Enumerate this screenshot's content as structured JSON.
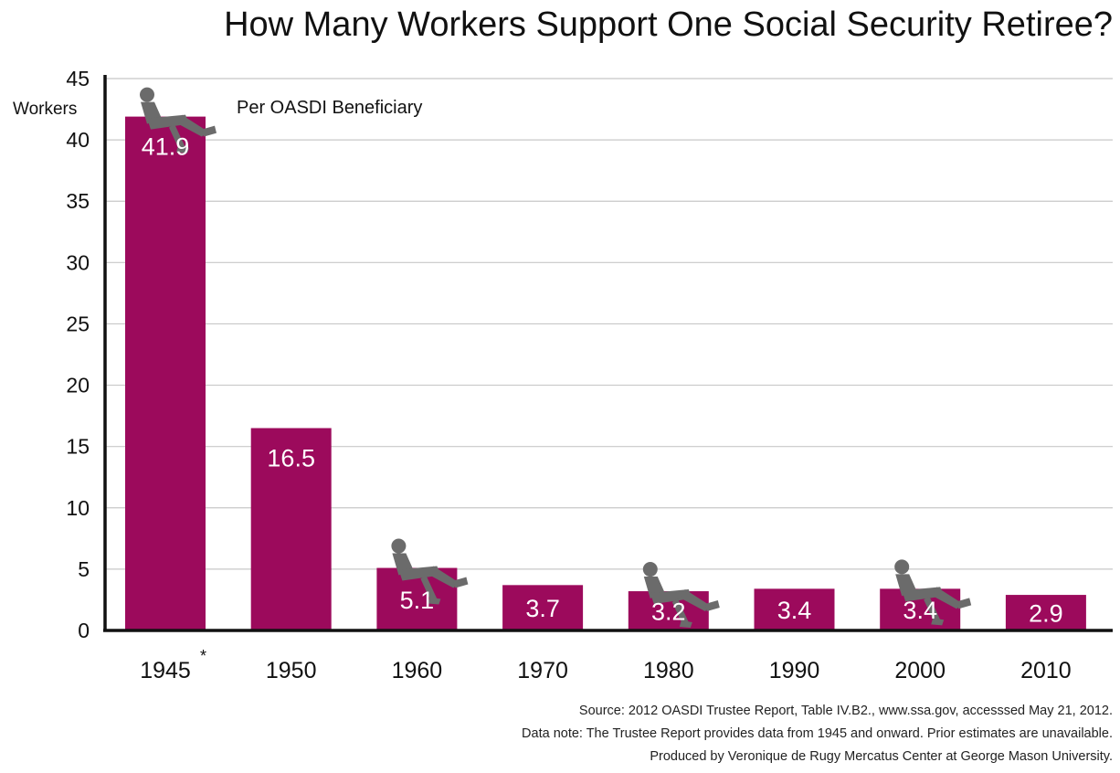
{
  "title": "How Many Workers Support One Social Security Retiree?",
  "ylabel_unit": "Workers",
  "ylabel_series": "Per OASDI Beneficiary",
  "source_lines": [
    "Source: 2012 OASDI Trustee Report, Table IV.B2., www.ssa.gov, accesssed May 21, 2012.",
    "Data note: The Trustee Report provides data from 1945 and onward. Prior estimates are unavailable.",
    "Produced by Veronique de Rugy Mercatus Center at George Mason University."
  ],
  "colors": {
    "bar": "#9c0a5c",
    "figure": "#6b6b6b",
    "grid": "#c8c8c8",
    "axis": "#111111"
  },
  "chart_data": {
    "type": "bar",
    "title": "How Many Workers Support One Social Security Retiree?",
    "xlabel": "",
    "ylabel": "Workers Per OASDI Beneficiary",
    "categories": [
      "1945",
      "1950",
      "1960",
      "1970",
      "1980",
      "1990",
      "2000",
      "2010"
    ],
    "category_marks": [
      "*",
      "",
      "",
      "",
      "",
      "",
      "",
      ""
    ],
    "values": [
      41.9,
      16.5,
      5.1,
      3.7,
      3.2,
      3.4,
      3.4,
      2.9
    ],
    "value_labels": [
      "41.9",
      "16.5",
      "5.1",
      "3.7",
      "3.2",
      "3.4",
      "3.4",
      "2.9"
    ],
    "ylim": [
      0,
      45
    ],
    "yticks": [
      0,
      5,
      10,
      15,
      20,
      25,
      30,
      35,
      40,
      45
    ],
    "grid": true,
    "legend": "none",
    "decorations": [
      "seated-figure on 1945",
      "seated-figure on 1960",
      "seated-figure on 1980",
      "seated-figure on 2000"
    ]
  }
}
